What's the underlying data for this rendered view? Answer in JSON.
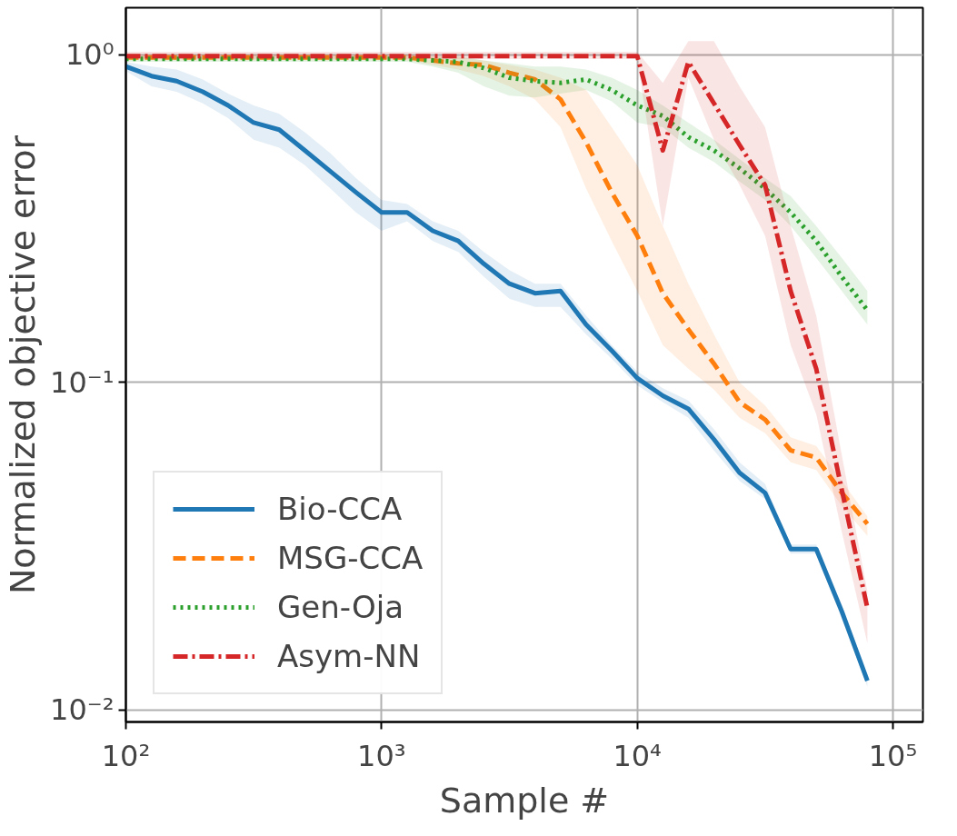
{
  "chart_data": {
    "type": "line",
    "xlabel": "Sample #",
    "ylabel": "Normalized objective error",
    "log": "xy",
    "grid": true,
    "legend": "bottom left",
    "xlim": [
      100,
      131000
    ],
    "ylim": [
      0.0092,
      1.39
    ],
    "xticks": [
      {
        "value": 100,
        "label": "10²"
      },
      {
        "value": 1000,
        "label": "10³"
      },
      {
        "value": 10000,
        "label": "10⁴"
      },
      {
        "value": 100000,
        "label": "10⁵"
      }
    ],
    "yticks": [
      {
        "value": 0.01,
        "label": "10⁻²"
      },
      {
        "value": 0.1,
        "label": "10⁻¹"
      },
      {
        "value": 1,
        "label": "10⁰"
      }
    ],
    "x": [
      100,
      126,
      158,
      200,
      251,
      316,
      398,
      501,
      631,
      794,
      1000,
      1259,
      1585,
      1995,
      2512,
      3162,
      3981,
      5012,
      6310,
      7943,
      10000,
      12589,
      15849,
      19953,
      25119,
      31623,
      39811,
      50119,
      63096,
      79433
    ],
    "series": [
      {
        "name": "Bio-CCA",
        "color": "#1f77b4",
        "line_style": "solid",
        "values": [
          0.92,
          0.86,
          0.83,
          0.77,
          0.7,
          0.62,
          0.59,
          0.51,
          0.44,
          0.38,
          0.33,
          0.33,
          0.29,
          0.27,
          0.23,
          0.2,
          0.187,
          0.19,
          0.15,
          0.125,
          0.103,
          0.091,
          0.083,
          0.067,
          0.053,
          0.046,
          0.031,
          0.031,
          0.02,
          0.0123
        ],
        "upper": [
          0.95,
          0.92,
          0.9,
          0.84,
          0.76,
          0.7,
          0.66,
          0.58,
          0.5,
          0.42,
          0.36,
          0.35,
          0.31,
          0.29,
          0.25,
          0.22,
          0.2,
          0.2,
          0.16,
          0.13,
          0.108,
          0.096,
          0.088,
          0.072,
          0.057,
          0.049,
          0.032,
          0.032,
          0.021,
          0.0128
        ],
        "lower": [
          0.89,
          0.8,
          0.77,
          0.71,
          0.64,
          0.55,
          0.52,
          0.46,
          0.39,
          0.33,
          0.29,
          0.31,
          0.27,
          0.25,
          0.21,
          0.18,
          0.17,
          0.17,
          0.14,
          0.118,
          0.098,
          0.087,
          0.078,
          0.062,
          0.05,
          0.044,
          0.03,
          0.03,
          0.019,
          0.0118
        ]
      },
      {
        "name": "MSG-CCA",
        "color": "#ff7f0e",
        "line_style": "dashed",
        "values": [
          0.98,
          0.98,
          0.98,
          0.98,
          0.98,
          0.98,
          0.98,
          0.98,
          0.98,
          0.98,
          0.98,
          0.98,
          0.96,
          0.94,
          0.93,
          0.88,
          0.84,
          0.73,
          0.54,
          0.38,
          0.28,
          0.187,
          0.145,
          0.114,
          0.087,
          0.077,
          0.062,
          0.059,
          0.046,
          0.037
        ],
        "upper": [
          1.0,
          1.0,
          1.0,
          1.0,
          1.0,
          1.0,
          1.0,
          1.0,
          1.0,
          1.0,
          1.0,
          1.0,
          0.99,
          0.98,
          0.96,
          0.93,
          0.9,
          0.85,
          0.78,
          0.6,
          0.46,
          0.3,
          0.2,
          0.14,
          0.1,
          0.085,
          0.068,
          0.064,
          0.05,
          0.039
        ],
        "lower": [
          0.96,
          0.96,
          0.96,
          0.96,
          0.96,
          0.96,
          0.96,
          0.96,
          0.96,
          0.96,
          0.96,
          0.96,
          0.93,
          0.9,
          0.86,
          0.8,
          0.73,
          0.6,
          0.39,
          0.27,
          0.19,
          0.13,
          0.11,
          0.095,
          0.078,
          0.07,
          0.057,
          0.054,
          0.042,
          0.034
        ]
      },
      {
        "name": "Gen-Oja",
        "color": "#2ca02c",
        "line_style": "dotted",
        "values": [
          0.97,
          0.97,
          0.97,
          0.97,
          0.97,
          0.97,
          0.97,
          0.97,
          0.97,
          0.97,
          0.97,
          0.97,
          0.96,
          0.95,
          0.91,
          0.85,
          0.83,
          0.82,
          0.84,
          0.78,
          0.7,
          0.65,
          0.56,
          0.51,
          0.45,
          0.39,
          0.33,
          0.27,
          0.21,
          0.166
        ],
        "upper": [
          0.99,
          0.99,
          0.99,
          0.99,
          0.99,
          0.99,
          0.99,
          0.99,
          0.99,
          0.99,
          0.99,
          0.99,
          0.99,
          0.99,
          0.96,
          0.94,
          0.92,
          0.92,
          0.9,
          0.85,
          0.78,
          0.7,
          0.62,
          0.55,
          0.48,
          0.42,
          0.37,
          0.3,
          0.24,
          0.19
        ],
        "lower": [
          0.95,
          0.95,
          0.95,
          0.95,
          0.95,
          0.95,
          0.95,
          0.95,
          0.95,
          0.95,
          0.95,
          0.95,
          0.92,
          0.88,
          0.8,
          0.75,
          0.74,
          0.76,
          0.78,
          0.72,
          0.62,
          0.6,
          0.52,
          0.47,
          0.41,
          0.36,
          0.3,
          0.24,
          0.19,
          0.15
        ]
      },
      {
        "name": "Asym-NN",
        "color": "#d62728",
        "line_style": "dashdot",
        "values": [
          0.99,
          0.99,
          0.99,
          0.99,
          0.99,
          0.99,
          0.99,
          0.99,
          0.99,
          0.99,
          0.99,
          0.99,
          0.99,
          0.99,
          0.99,
          0.99,
          0.99,
          0.99,
          0.99,
          0.99,
          0.99,
          0.51,
          0.95,
          0.71,
          0.53,
          0.4,
          0.19,
          0.11,
          0.047,
          0.0205
        ],
        "upper": [
          1.02,
          1.02,
          1.02,
          1.02,
          1.02,
          1.02,
          1.02,
          1.02,
          1.02,
          1.02,
          1.02,
          1.02,
          1.02,
          1.02,
          1.02,
          1.02,
          1.02,
          1.02,
          1.02,
          1.02,
          1.02,
          0.82,
          1.1,
          1.1,
          0.8,
          0.6,
          0.3,
          0.16,
          0.06,
          0.023
        ],
        "lower": [
          0.97,
          0.97,
          0.97,
          0.97,
          0.97,
          0.97,
          0.97,
          0.97,
          0.97,
          0.97,
          0.97,
          0.97,
          0.97,
          0.97,
          0.97,
          0.97,
          0.97,
          0.97,
          0.97,
          0.97,
          0.97,
          0.3,
          0.85,
          0.55,
          0.4,
          0.28,
          0.13,
          0.08,
          0.035,
          0.016
        ]
      }
    ]
  }
}
